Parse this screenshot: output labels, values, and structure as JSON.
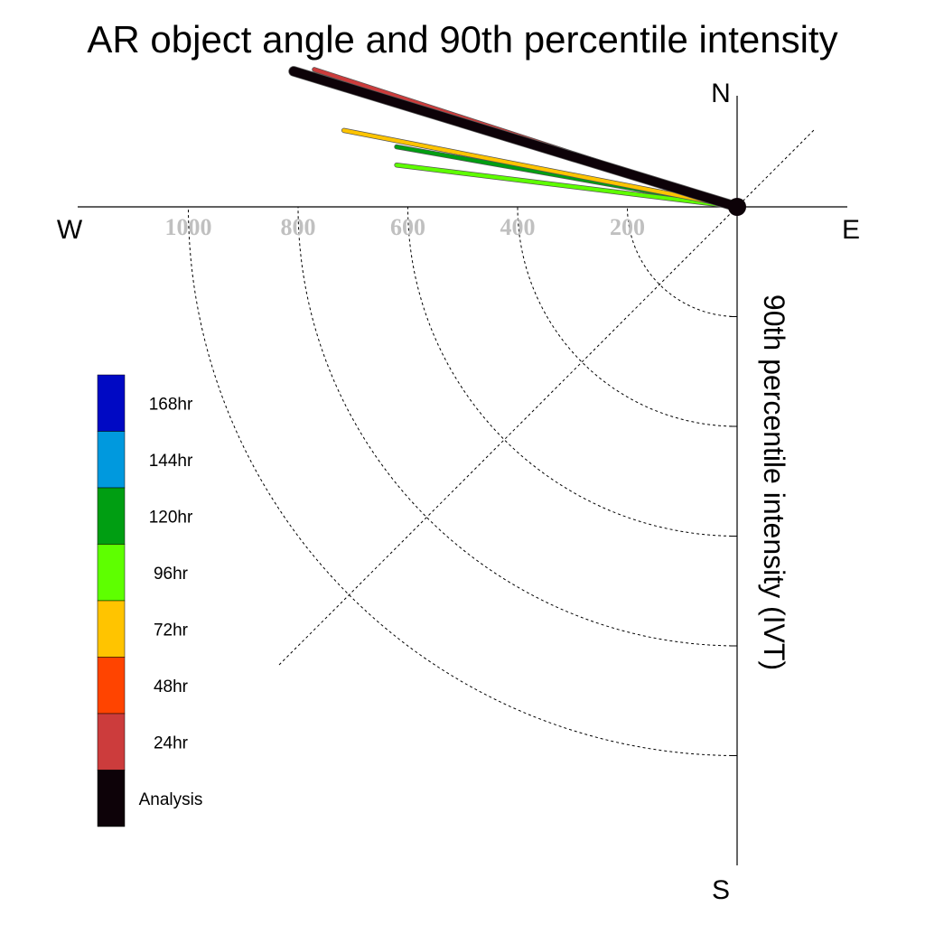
{
  "chart_data": {
    "type": "polar-vector",
    "title": "AR object angle and 90th percentile intensity",
    "ylabel": "90th percentile intensity (IVT)",
    "compass": {
      "north": "N",
      "south": "S",
      "east": "E",
      "west": "W"
    },
    "radial_ticks": [
      "1000",
      "800",
      "600",
      "400",
      "200"
    ],
    "radial_tick_values": [
      1000,
      800,
      600,
      400,
      200
    ],
    "radial_max": 1200,
    "grid": true,
    "legend_position": "left",
    "series": [
      {
        "name": "Analysis",
        "color": "#0d0208",
        "angle_deg": 163,
        "intensity": 845
      },
      {
        "name": "24hr",
        "color": "#cc3c3c",
        "angle_deg": 162,
        "intensity": 810
      },
      {
        "name": "48hr",
        "color": "#ff4400",
        "angle_deg": 162.5,
        "intensity": 805
      },
      {
        "name": "72hr",
        "color": "#ffc400",
        "angle_deg": 169,
        "intensity": 730
      },
      {
        "name": "96hr",
        "color": "#5eff00",
        "angle_deg": 173,
        "intensity": 625
      },
      {
        "name": "120hr",
        "color": "#009e12",
        "angle_deg": 170,
        "intensity": 630
      }
    ],
    "legend": [
      {
        "name": "168hr",
        "color": "#0009c4"
      },
      {
        "name": "144hr",
        "color": "#0099de"
      },
      {
        "name": "120hr",
        "color": "#009e12"
      },
      {
        "name": "96hr",
        "color": "#5eff00"
      },
      {
        "name": "72hr",
        "color": "#ffc400"
      },
      {
        "name": "48hr",
        "color": "#ff4400"
      },
      {
        "name": "24hr",
        "color": "#cc3c3c"
      },
      {
        "name": "Analysis",
        "color": "#0d0208"
      }
    ]
  }
}
